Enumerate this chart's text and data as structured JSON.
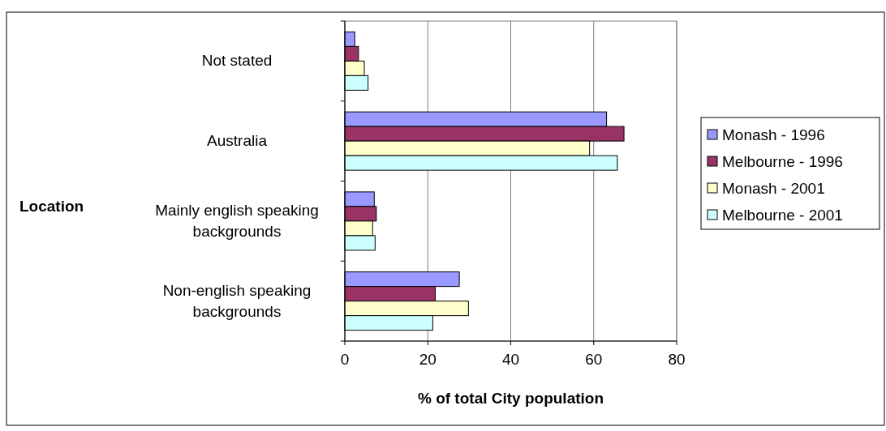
{
  "chart_data": {
    "type": "bar",
    "orientation": "horizontal",
    "xlabel": "% of total City population",
    "ylabel": "Location",
    "categories": [
      "Not stated",
      "Australia",
      "Mainly english speaking backgrounds",
      "Non-english speaking backgrounds"
    ],
    "series": [
      {
        "name": "Monash - 1996",
        "color": "#9999ff",
        "values": [
          2.4,
          63.1,
          7.1,
          27.6
        ]
      },
      {
        "name": "Melbourne - 1996",
        "color": "#993366",
        "values": [
          3.3,
          67.3,
          7.6,
          21.8
        ]
      },
      {
        "name": "Monash - 2001",
        "color": "#ffffcc",
        "values": [
          4.7,
          59.0,
          6.7,
          29.8
        ]
      },
      {
        "name": "Melbourne - 2001",
        "color": "#ccffff",
        "values": [
          5.6,
          65.7,
          7.3,
          21.2
        ]
      }
    ],
    "xlim": [
      0,
      80
    ],
    "xticks": [
      0,
      20,
      40,
      60,
      80
    ],
    "grid": "x",
    "legend": "right"
  }
}
